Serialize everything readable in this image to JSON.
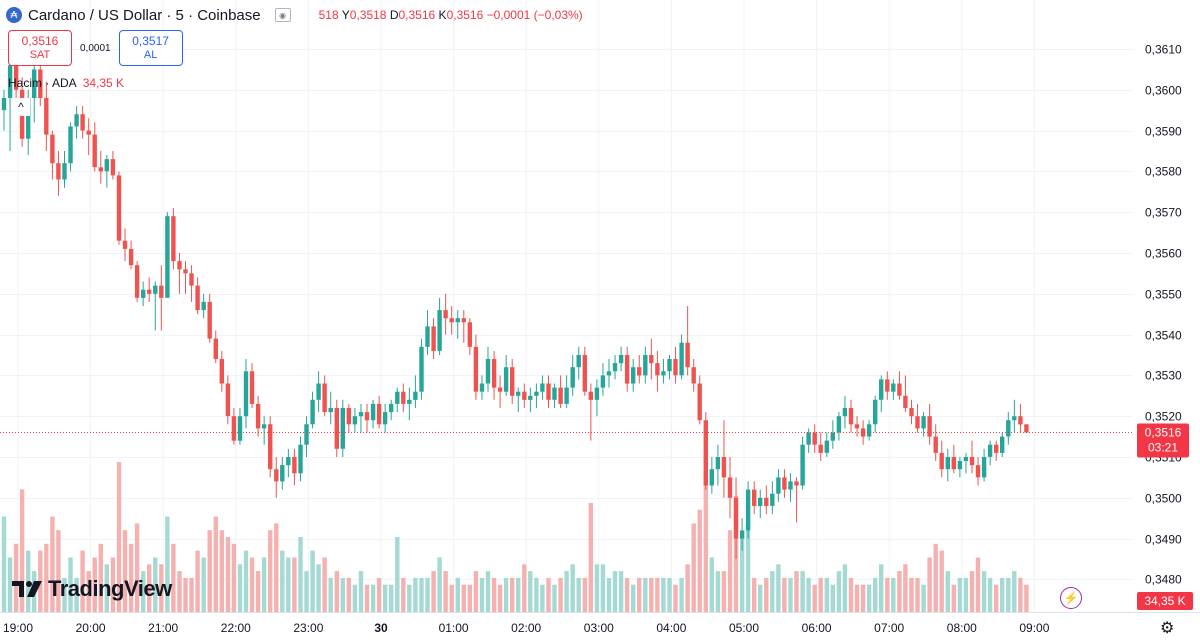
{
  "header": {
    "symbol": "Cardano / US Dollar · 5 · Coinbase",
    "ohlc_open": "518",
    "h_label": "Y",
    "h_value": "0,3518",
    "l_label": "D",
    "l_value": "0,3516",
    "c_label": "K",
    "c_value": "0,3516",
    "change": "−0,0001 (−0,03%)"
  },
  "trade": {
    "sell_price": "0,3516",
    "sell_label": "SAT",
    "spread": "0,0001",
    "buy_price": "0,3517",
    "buy_label": "AL"
  },
  "volume": {
    "label": "Hacim · ADA",
    "value": "34,35 K",
    "axis_value": "34,35 K"
  },
  "price_tag": {
    "price": "0,3516",
    "countdown": "03:21"
  },
  "brand": {
    "name": "TradingView"
  },
  "colors": {
    "up": "#26a69a",
    "down": "#ef5350",
    "up_volume": "#a5d9d4",
    "down_volume": "#f5b1b0",
    "last_price": "#f23645"
  },
  "chart_data": {
    "type": "candlestick",
    "title": "Cardano / US Dollar · 5 · Coinbase",
    "y_ticks": [
      "0,3480",
      "0,3490",
      "0,3500",
      "0,3510",
      "0,3520",
      "0,3530",
      "0,3540",
      "0,3550",
      "0,3560",
      "0,3570",
      "0,3580",
      "0,3590",
      "0,3600",
      "0,3610"
    ],
    "ylim": [
      0.3472,
      0.3622
    ],
    "x_ticks": [
      "19:00",
      "20:00",
      "21:00",
      "22:00",
      "23:00",
      "30",
      "01:00",
      "02:00",
      "03:00",
      "04:00",
      "05:00",
      "06:00",
      "07:00",
      "08:00",
      "09:00"
    ],
    "interval_minutes": 5,
    "last_price": 0.3516,
    "candles": [
      [
        0.3595,
        0.36,
        0.359,
        0.3598,
        14
      ],
      [
        0.3598,
        0.3611,
        0.3585,
        0.3606,
        8
      ],
      [
        0.3606,
        0.3608,
        0.3596,
        0.36,
        10
      ],
      [
        0.36,
        0.3603,
        0.3586,
        0.3588,
        18
      ],
      [
        0.3588,
        0.36,
        0.3584,
        0.3598,
        9
      ],
      [
        0.3598,
        0.3608,
        0.3592,
        0.3605,
        6
      ],
      [
        0.3605,
        0.3607,
        0.3596,
        0.3598,
        9
      ],
      [
        0.3598,
        0.3602,
        0.3585,
        0.3589,
        10
      ],
      [
        0.3589,
        0.359,
        0.3578,
        0.3582,
        14
      ],
      [
        0.3582,
        0.3585,
        0.3574,
        0.3578,
        12
      ],
      [
        0.3578,
        0.3585,
        0.3576,
        0.3582,
        5
      ],
      [
        0.3582,
        0.3592,
        0.358,
        0.3591,
        8
      ],
      [
        0.3591,
        0.3596,
        0.3588,
        0.3594,
        5
      ],
      [
        0.3594,
        0.3596,
        0.3588,
        0.359,
        9
      ],
      [
        0.359,
        0.3593,
        0.3584,
        0.3589,
        6
      ],
      [
        0.3589,
        0.3592,
        0.358,
        0.3581,
        8
      ],
      [
        0.3581,
        0.3585,
        0.3577,
        0.358,
        10
      ],
      [
        0.358,
        0.3584,
        0.3576,
        0.3583,
        7
      ],
      [
        0.3583,
        0.3585,
        0.3578,
        0.3579,
        8
      ],
      [
        0.3579,
        0.358,
        0.3562,
        0.3563,
        22
      ],
      [
        0.3563,
        0.3566,
        0.3558,
        0.3561,
        12
      ],
      [
        0.3561,
        0.3563,
        0.3556,
        0.3557,
        10
      ],
      [
        0.3557,
        0.3558,
        0.3548,
        0.3549,
        13
      ],
      [
        0.3549,
        0.3553,
        0.3547,
        0.3551,
        6
      ],
      [
        0.3551,
        0.3554,
        0.3548,
        0.355,
        7
      ],
      [
        0.355,
        0.3553,
        0.3541,
        0.3552,
        8
      ],
      [
        0.3552,
        0.3557,
        0.3541,
        0.3549,
        7
      ],
      [
        0.3549,
        0.357,
        0.3549,
        0.3569,
        14
      ],
      [
        0.3569,
        0.3571,
        0.3556,
        0.3558,
        10
      ],
      [
        0.3558,
        0.356,
        0.355,
        0.3556,
        6
      ],
      [
        0.3556,
        0.3558,
        0.355,
        0.3555,
        5
      ],
      [
        0.3555,
        0.3557,
        0.3548,
        0.3552,
        5
      ],
      [
        0.3552,
        0.3554,
        0.3545,
        0.3546,
        9
      ],
      [
        0.3546,
        0.355,
        0.3544,
        0.3548,
        8
      ],
      [
        0.3548,
        0.355,
        0.3538,
        0.3539,
        12
      ],
      [
        0.3539,
        0.3541,
        0.3533,
        0.3534,
        14
      ],
      [
        0.3534,
        0.3536,
        0.3526,
        0.3528,
        12
      ],
      [
        0.3528,
        0.353,
        0.3518,
        0.352,
        11
      ],
      [
        0.352,
        0.3522,
        0.3513,
        0.3514,
        10
      ],
      [
        0.3514,
        0.3522,
        0.3513,
        0.352,
        7
      ],
      [
        0.352,
        0.3534,
        0.3517,
        0.3531,
        9
      ],
      [
        0.3531,
        0.3533,
        0.3522,
        0.3523,
        8
      ],
      [
        0.3523,
        0.3525,
        0.3515,
        0.3517,
        6
      ],
      [
        0.3517,
        0.352,
        0.3513,
        0.3518,
        8
      ],
      [
        0.3518,
        0.352,
        0.3505,
        0.3507,
        12
      ],
      [
        0.3507,
        0.351,
        0.35,
        0.3504,
        13
      ],
      [
        0.3504,
        0.351,
        0.3502,
        0.3508,
        9
      ],
      [
        0.3508,
        0.3512,
        0.3505,
        0.351,
        8
      ],
      [
        0.351,
        0.3512,
        0.3503,
        0.3506,
        8
      ],
      [
        0.3506,
        0.3515,
        0.3504,
        0.3513,
        11
      ],
      [
        0.3513,
        0.352,
        0.351,
        0.3518,
        6
      ],
      [
        0.3518,
        0.3526,
        0.3517,
        0.3524,
        9
      ],
      [
        0.3524,
        0.3531,
        0.3521,
        0.3528,
        7
      ],
      [
        0.3528,
        0.353,
        0.352,
        0.3521,
        8
      ],
      [
        0.3521,
        0.3526,
        0.3518,
        0.3522,
        5
      ],
      [
        0.3522,
        0.3524,
        0.351,
        0.3512,
        6
      ],
      [
        0.3512,
        0.3524,
        0.351,
        0.3522,
        5
      ],
      [
        0.3522,
        0.3523,
        0.3516,
        0.3518,
        5
      ],
      [
        0.3518,
        0.3522,
        0.3516,
        0.352,
        4
      ],
      [
        0.352,
        0.3523,
        0.3516,
        0.3521,
        6
      ],
      [
        0.3521,
        0.3523,
        0.3516,
        0.3519,
        4
      ],
      [
        0.3519,
        0.3524,
        0.3517,
        0.3523,
        4
      ],
      [
        0.3523,
        0.3525,
        0.3517,
        0.3518,
        5
      ],
      [
        0.3518,
        0.3523,
        0.3516,
        0.3521,
        4
      ],
      [
        0.3521,
        0.3524,
        0.3519,
        0.3523,
        4
      ],
      [
        0.3523,
        0.3527,
        0.3521,
        0.3526,
        11
      ],
      [
        0.3526,
        0.3528,
        0.3521,
        0.3523,
        5
      ],
      [
        0.3523,
        0.3527,
        0.3519,
        0.3524,
        4
      ],
      [
        0.3524,
        0.353,
        0.3522,
        0.3526,
        5
      ],
      [
        0.3526,
        0.3539,
        0.3524,
        0.3537,
        5
      ],
      [
        0.3537,
        0.3546,
        0.3535,
        0.3542,
        5
      ],
      [
        0.3542,
        0.3544,
        0.3534,
        0.3536,
        6
      ],
      [
        0.3536,
        0.3549,
        0.3535,
        0.3546,
        8
      ],
      [
        0.3546,
        0.355,
        0.354,
        0.3544,
        6
      ],
      [
        0.3544,
        0.3547,
        0.354,
        0.3543,
        4
      ],
      [
        0.3543,
        0.3546,
        0.3539,
        0.3544,
        5
      ],
      [
        0.3544,
        0.3546,
        0.3538,
        0.3543,
        4
      ],
      [
        0.3543,
        0.3544,
        0.3535,
        0.3537,
        4
      ],
      [
        0.3537,
        0.354,
        0.3524,
        0.3526,
        6
      ],
      [
        0.3526,
        0.353,
        0.3524,
        0.3528,
        5
      ],
      [
        0.3528,
        0.3537,
        0.3526,
        0.3534,
        6
      ],
      [
        0.3534,
        0.3536,
        0.3524,
        0.3527,
        5
      ],
      [
        0.3527,
        0.353,
        0.3522,
        0.3526,
        4
      ],
      [
        0.3526,
        0.3535,
        0.3525,
        0.3532,
        5
      ],
      [
        0.3532,
        0.3534,
        0.3523,
        0.3525,
        5
      ],
      [
        0.3525,
        0.3527,
        0.3521,
        0.3526,
        5
      ],
      [
        0.3526,
        0.3528,
        0.3522,
        0.3524,
        7
      ],
      [
        0.3524,
        0.3527,
        0.3521,
        0.3525,
        6
      ],
      [
        0.3525,
        0.3528,
        0.3522,
        0.3526,
        5
      ],
      [
        0.3526,
        0.353,
        0.3524,
        0.3528,
        4
      ],
      [
        0.3528,
        0.353,
        0.3522,
        0.3524,
        5
      ],
      [
        0.3524,
        0.3528,
        0.3522,
        0.3527,
        4
      ],
      [
        0.3527,
        0.353,
        0.3522,
        0.3523,
        5
      ],
      [
        0.3523,
        0.353,
        0.3522,
        0.3527,
        6
      ],
      [
        0.3527,
        0.3535,
        0.3525,
        0.3532,
        7
      ],
      [
        0.3532,
        0.3537,
        0.3529,
        0.3535,
        5
      ],
      [
        0.3535,
        0.3537,
        0.3525,
        0.3526,
        5
      ],
      [
        0.3526,
        0.3528,
        0.3514,
        0.3524,
        16
      ],
      [
        0.3524,
        0.3529,
        0.352,
        0.3527,
        7
      ],
      [
        0.3527,
        0.3533,
        0.3525,
        0.353,
        7
      ],
      [
        0.353,
        0.3534,
        0.3527,
        0.3531,
        5
      ],
      [
        0.3531,
        0.3535,
        0.3529,
        0.3533,
        6
      ],
      [
        0.3533,
        0.3537,
        0.3531,
        0.3535,
        6
      ],
      [
        0.3535,
        0.3537,
        0.3526,
        0.3528,
        5
      ],
      [
        0.3528,
        0.3534,
        0.3526,
        0.3532,
        4
      ],
      [
        0.3532,
        0.3535,
        0.3528,
        0.353,
        5
      ],
      [
        0.353,
        0.3537,
        0.3528,
        0.3535,
        5
      ],
      [
        0.3535,
        0.3539,
        0.3529,
        0.3533,
        5
      ],
      [
        0.3533,
        0.3536,
        0.3526,
        0.353,
        5
      ],
      [
        0.353,
        0.3534,
        0.3528,
        0.3531,
        5
      ],
      [
        0.3531,
        0.3535,
        0.3529,
        0.3534,
        5
      ],
      [
        0.3534,
        0.3537,
        0.3528,
        0.353,
        4
      ],
      [
        0.353,
        0.354,
        0.3529,
        0.3538,
        5
      ],
      [
        0.3538,
        0.3547,
        0.353,
        0.3532,
        7
      ],
      [
        0.3532,
        0.3534,
        0.3526,
        0.3528,
        13
      ],
      [
        0.3528,
        0.353,
        0.3518,
        0.3519,
        15
      ],
      [
        0.3519,
        0.3521,
        0.3502,
        0.3503,
        20
      ],
      [
        0.3503,
        0.351,
        0.3501,
        0.3507,
        8
      ],
      [
        0.3507,
        0.3513,
        0.3503,
        0.351,
        6
      ],
      [
        0.351,
        0.3519,
        0.35,
        0.3505,
        6
      ],
      [
        0.3505,
        0.351,
        0.3495,
        0.35,
        12
      ],
      [
        0.35,
        0.3505,
        0.3485,
        0.349,
        17
      ],
      [
        0.349,
        0.3495,
        0.3487,
        0.3492,
        11
      ],
      [
        0.3492,
        0.3504,
        0.349,
        0.3502,
        13
      ],
      [
        0.3502,
        0.3504,
        0.3496,
        0.3498,
        5
      ],
      [
        0.3498,
        0.3502,
        0.3495,
        0.35,
        4
      ],
      [
        0.35,
        0.3503,
        0.3496,
        0.3498,
        5
      ],
      [
        0.3498,
        0.3504,
        0.3496,
        0.3501,
        6
      ],
      [
        0.3501,
        0.3507,
        0.3499,
        0.3505,
        7
      ],
      [
        0.3505,
        0.3507,
        0.35,
        0.3502,
        5
      ],
      [
        0.3502,
        0.3506,
        0.3499,
        0.3504,
        5
      ],
      [
        0.3504,
        0.3505,
        0.3494,
        0.3503,
        6
      ],
      [
        0.3503,
        0.3515,
        0.3502,
        0.3513,
        6
      ],
      [
        0.3513,
        0.3517,
        0.3511,
        0.3516,
        5
      ],
      [
        0.3516,
        0.3518,
        0.3511,
        0.3513,
        4
      ],
      [
        0.3513,
        0.3516,
        0.3509,
        0.3511,
        5
      ],
      [
        0.3511,
        0.3516,
        0.351,
        0.3514,
        5
      ],
      [
        0.3514,
        0.3519,
        0.3512,
        0.3516,
        4
      ],
      [
        0.3516,
        0.3521,
        0.3514,
        0.352,
        6
      ],
      [
        0.352,
        0.3525,
        0.3517,
        0.3522,
        7
      ],
      [
        0.3522,
        0.3524,
        0.3516,
        0.3518,
        5
      ],
      [
        0.3518,
        0.352,
        0.3515,
        0.3517,
        4
      ],
      [
        0.3517,
        0.3519,
        0.3513,
        0.3515,
        4
      ],
      [
        0.3515,
        0.3519,
        0.3514,
        0.3518,
        4
      ],
      [
        0.3518,
        0.3525,
        0.3516,
        0.3524,
        5
      ],
      [
        0.3524,
        0.353,
        0.3521,
        0.3529,
        7
      ],
      [
        0.3529,
        0.3531,
        0.3524,
        0.3526,
        5
      ],
      [
        0.3526,
        0.3529,
        0.3524,
        0.3528,
        5
      ],
      [
        0.3528,
        0.3531,
        0.3524,
        0.3525,
        6
      ],
      [
        0.3525,
        0.353,
        0.3521,
        0.3522,
        7
      ],
      [
        0.3522,
        0.3524,
        0.3518,
        0.352,
        5
      ],
      [
        0.352,
        0.3523,
        0.3516,
        0.3517,
        5
      ],
      [
        0.3517,
        0.3521,
        0.3515,
        0.352,
        4
      ],
      [
        0.352,
        0.3523,
        0.3513,
        0.3515,
        8
      ],
      [
        0.3515,
        0.3518,
        0.3509,
        0.3511,
        10
      ],
      [
        0.3511,
        0.3514,
        0.3505,
        0.3507,
        9
      ],
      [
        0.3507,
        0.3512,
        0.3504,
        0.351,
        6
      ],
      [
        0.351,
        0.3513,
        0.3506,
        0.3507,
        4
      ],
      [
        0.3507,
        0.351,
        0.3505,
        0.3509,
        5
      ],
      [
        0.3509,
        0.3511,
        0.3506,
        0.351,
        5
      ],
      [
        0.351,
        0.3514,
        0.3506,
        0.3508,
        6
      ],
      [
        0.3508,
        0.351,
        0.3503,
        0.3505,
        8
      ],
      [
        0.3505,
        0.3512,
        0.3504,
        0.351,
        6
      ],
      [
        0.351,
        0.3514,
        0.3508,
        0.3513,
        5
      ],
      [
        0.3513,
        0.3514,
        0.3509,
        0.3511,
        4
      ],
      [
        0.3511,
        0.3516,
        0.351,
        0.3515,
        5
      ],
      [
        0.3515,
        0.3521,
        0.3513,
        0.3519,
        5
      ],
      [
        0.3519,
        0.3524,
        0.3516,
        0.352,
        6
      ],
      [
        0.352,
        0.3523,
        0.3516,
        0.3518,
        5
      ],
      [
        0.3518,
        0.3518,
        0.3516,
        0.3516,
        4
      ]
    ]
  }
}
